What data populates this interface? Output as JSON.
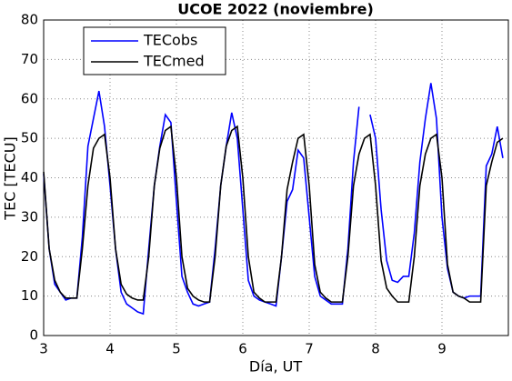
{
  "chart_data": {
    "type": "line",
    "title": "UCOE 2022 (noviembre)",
    "x_label": "Día, UT",
    "y_label": "TEC [TECU]",
    "x": [
      3,
      3.083,
      3.167,
      3.25,
      3.333,
      3.417,
      3.5,
      3.583,
      3.667,
      3.75,
      3.833,
      3.917,
      4,
      4.083,
      4.167,
      4.25,
      4.333,
      4.417,
      4.5,
      4.583,
      4.667,
      4.75,
      4.833,
      4.917,
      5,
      5.083,
      5.167,
      5.25,
      5.333,
      5.417,
      5.5,
      5.583,
      5.667,
      5.75,
      5.833,
      5.917,
      6,
      6.083,
      6.167,
      6.25,
      6.333,
      6.417,
      6.5,
      6.583,
      6.667,
      6.75,
      6.833,
      6.917,
      7,
      7.083,
      7.167,
      7.25,
      7.333,
      7.417,
      7.5,
      7.583,
      7.667,
      7.75,
      7.833,
      7.917,
      8,
      8.083,
      8.167,
      8.25,
      8.333,
      8.417,
      8.5,
      8.583,
      8.667,
      8.75,
      8.833,
      8.917,
      9,
      9.083,
      9.167,
      9.25,
      9.333,
      9.417,
      9.5,
      9.583,
      9.667,
      9.75,
      9.833,
      9.917
    ],
    "series": [
      {
        "name": "TECobs",
        "color": "#0000ff",
        "values": [
          41,
          22,
          13,
          11,
          9,
          9.5,
          9.5,
          25,
          48,
          55,
          62,
          53,
          38,
          22,
          11,
          8,
          7,
          6,
          5.5,
          22,
          38,
          48,
          56,
          54,
          34,
          15,
          11,
          8,
          7.5,
          8,
          8.5,
          22,
          38,
          48,
          56.5,
          50,
          32,
          14,
          10,
          9,
          8.5,
          8,
          7.5,
          20,
          34,
          37,
          47,
          45,
          30,
          15,
          10,
          9,
          8,
          8,
          8,
          22,
          44,
          58,
          null,
          56,
          50,
          32,
          19,
          14,
          13.5,
          15,
          15,
          26,
          44,
          55,
          64,
          55,
          30,
          17,
          11,
          10,
          9.5,
          10,
          10,
          10,
          43,
          46,
          53,
          45
        ]
      },
      {
        "name": "TECmed",
        "color": "#000000",
        "values": [
          41.5,
          22,
          14,
          11,
          9.5,
          9.5,
          9.5,
          22,
          38,
          47.5,
          50,
          51,
          40,
          22,
          13,
          10.5,
          9.5,
          9,
          9,
          20,
          38,
          47.5,
          52,
          53,
          40,
          20,
          12,
          10,
          9,
          8.5,
          8.5,
          20,
          38,
          48,
          52,
          53,
          40,
          20,
          11,
          9.5,
          8.5,
          8.5,
          8.5,
          20,
          37,
          44,
          50,
          51,
          38,
          18,
          11,
          9.5,
          8.5,
          8.5,
          8.5,
          20,
          38,
          46,
          50,
          51,
          38,
          19,
          12,
          10,
          8.5,
          8.5,
          8.5,
          20,
          38,
          46,
          50,
          51,
          40,
          18,
          11,
          10,
          9.5,
          8.5,
          8.5,
          8.5,
          38,
          44,
          49,
          50
        ]
      }
    ],
    "xlim": [
      3,
      10
    ],
    "xticks": [
      3,
      4,
      5,
      6,
      7,
      8,
      9
    ],
    "ylim": [
      0,
      80
    ],
    "yticks": [
      0,
      10,
      20,
      30,
      40,
      50,
      60,
      70,
      80
    ],
    "grid": true,
    "legend": "upper left"
  }
}
